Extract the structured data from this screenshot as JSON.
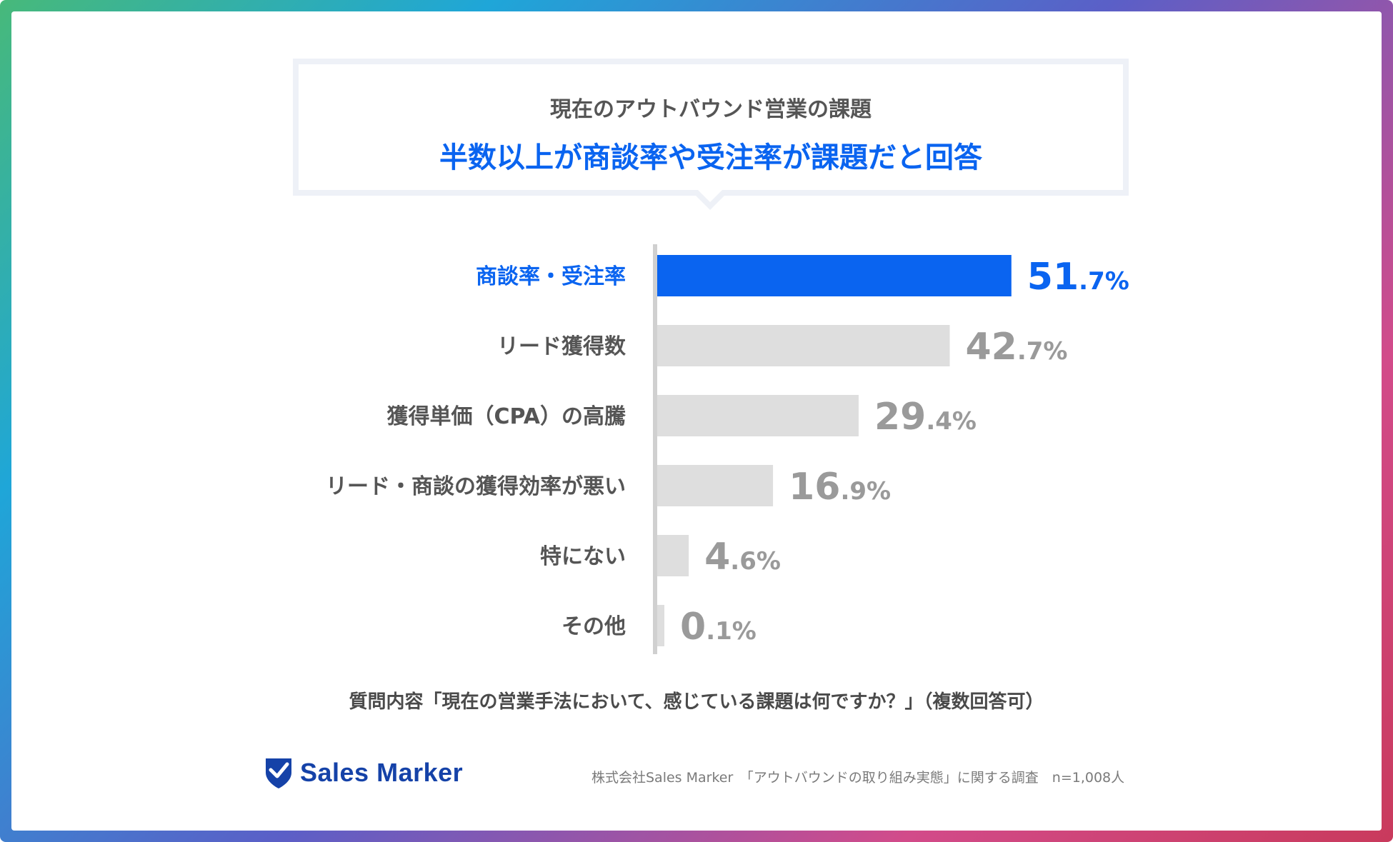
{
  "header": {
    "subtitle": "現在のアウトバウンド営業の課題",
    "headline": "半数以上が商談率や受注率が課題だと回答"
  },
  "chart_data": {
    "type": "bar",
    "orientation": "horizontal",
    "categories": [
      "商談率・受注率",
      "リード獲得数",
      "獲得単価（CPA）の高騰",
      "リード・商談の獲得効率が悪い",
      "特にない",
      "その他"
    ],
    "values": [
      51.7,
      42.7,
      29.4,
      16.9,
      4.6,
      0.1
    ],
    "value_labels": [
      {
        "int": "51",
        "dec": ".7%"
      },
      {
        "int": "42",
        "dec": ".7%"
      },
      {
        "int": "29",
        "dec": ".4%"
      },
      {
        "int": "16",
        "dec": ".9%"
      },
      {
        "int": "4",
        "dec": ".6%"
      },
      {
        "int": "0",
        "dec": ".1%"
      }
    ],
    "highlight_index": 0,
    "colors": {
      "highlight": "#0a64f0",
      "bar": "#dedede",
      "label": "#555555",
      "value": "#9a9a9a",
      "axis": "#d0d0d0"
    },
    "xlim": [
      0,
      100
    ],
    "grid": false
  },
  "question": "質問内容「現在の営業手法において、感じている課題は何ですか？」（複数回答可）",
  "footer": {
    "logo_icon": "map-pin-check-icon",
    "logo_text": "Sales Marker",
    "source": "株式会社Sales Marker　「アウトバウンドの取り組み実態」に関する調査　n=1,008人"
  }
}
